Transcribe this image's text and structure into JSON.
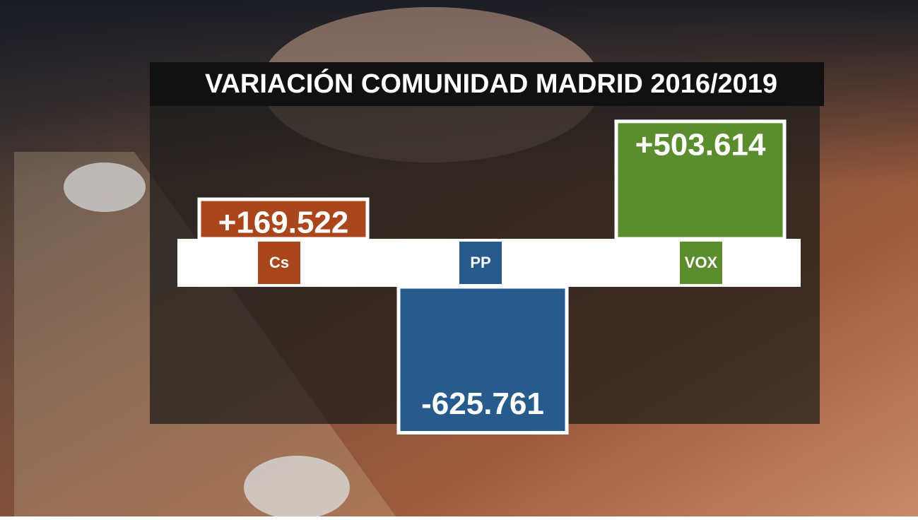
{
  "chart_data": {
    "type": "bar",
    "title": "VARIACIÓN COMUNIDAD MADRID 2016/2019",
    "categories": [
      "Cs",
      "PP",
      "VOX"
    ],
    "values": [
      169522,
      -625761,
      503614
    ],
    "value_labels": [
      "+169.522",
      "-625.761",
      "+503.614"
    ],
    "colors": [
      "#a9461b",
      "#275b8c",
      "#5b8c2d"
    ]
  }
}
